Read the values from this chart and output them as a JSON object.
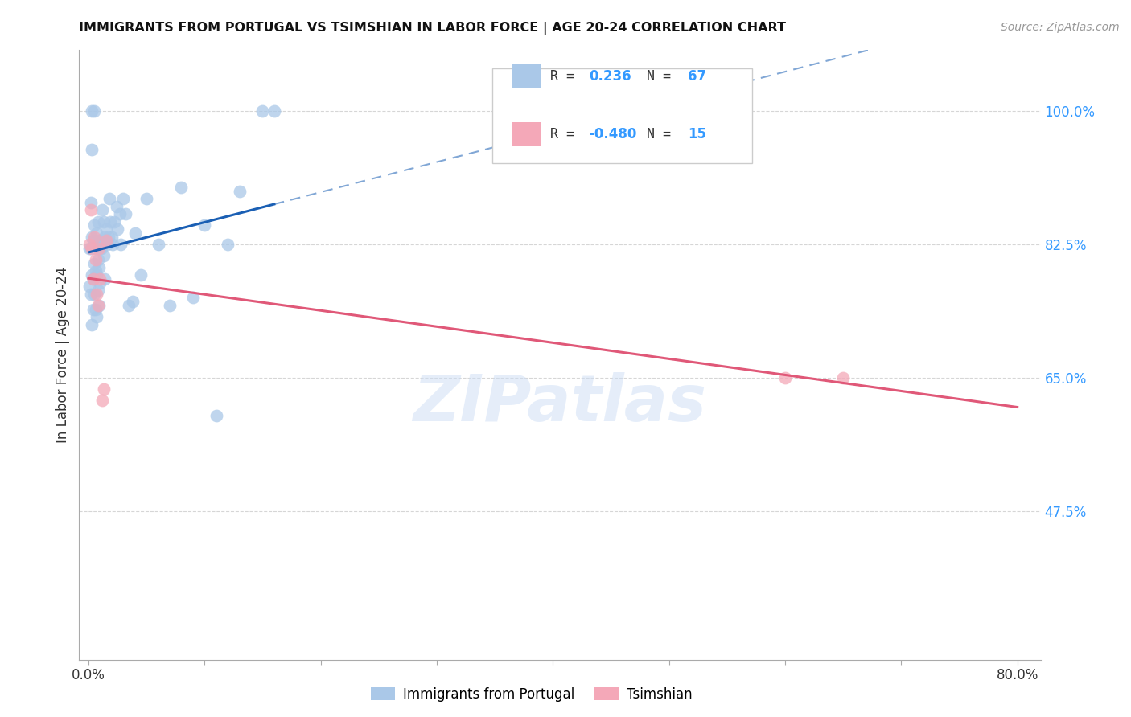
{
  "title": "IMMIGRANTS FROM PORTUGAL VS TSIMSHIAN IN LABOR FORCE | AGE 20-24 CORRELATION CHART",
  "source": "Source: ZipAtlas.com",
  "ylabel": "In Labor Force | Age 20-24",
  "yticks": [
    0.475,
    0.65,
    0.825,
    1.0
  ],
  "ytick_labels": [
    "47.5%",
    "65.0%",
    "82.5%",
    "100.0%"
  ],
  "xlim": [
    -0.008,
    0.82
  ],
  "ylim": [
    0.28,
    1.08
  ],
  "blue_color": "#aac8e8",
  "pink_color": "#f4a8b8",
  "blue_line_color": "#1a5fb4",
  "pink_line_color": "#e05878",
  "watermark": "ZIPatlas",
  "portugal_x": [
    0.001,
    0.001,
    0.002,
    0.002,
    0.002,
    0.003,
    0.003,
    0.003,
    0.003,
    0.003,
    0.004,
    0.004,
    0.004,
    0.005,
    0.005,
    0.005,
    0.005,
    0.006,
    0.006,
    0.006,
    0.007,
    0.007,
    0.007,
    0.008,
    0.008,
    0.008,
    0.009,
    0.009,
    0.01,
    0.01,
    0.01,
    0.011,
    0.012,
    0.012,
    0.013,
    0.013,
    0.014,
    0.014,
    0.015,
    0.016,
    0.017,
    0.018,
    0.019,
    0.02,
    0.021,
    0.022,
    0.024,
    0.025,
    0.027,
    0.028,
    0.03,
    0.032,
    0.035,
    0.038,
    0.04,
    0.045,
    0.05,
    0.06,
    0.07,
    0.08,
    0.09,
    0.1,
    0.11,
    0.12,
    0.13,
    0.15,
    0.16
  ],
  "portugal_y": [
    0.77,
    0.82,
    0.88,
    0.76,
    0.82,
    0.785,
    0.835,
    0.95,
    1.0,
    0.72,
    0.74,
    0.78,
    0.83,
    0.76,
    0.8,
    0.85,
    1.0,
    0.74,
    0.79,
    0.82,
    0.73,
    0.785,
    0.84,
    0.765,
    0.805,
    0.855,
    0.745,
    0.795,
    0.775,
    0.82,
    0.83,
    0.82,
    0.825,
    0.87,
    0.81,
    0.855,
    0.835,
    0.78,
    0.845,
    0.825,
    0.835,
    0.885,
    0.855,
    0.835,
    0.825,
    0.855,
    0.875,
    0.845,
    0.865,
    0.825,
    0.885,
    0.865,
    0.745,
    0.75,
    0.84,
    0.785,
    0.885,
    0.825,
    0.745,
    0.9,
    0.755,
    0.85,
    0.6,
    0.825,
    0.895,
    1.0,
    1.0
  ],
  "tsimshian_x": [
    0.001,
    0.002,
    0.003,
    0.004,
    0.005,
    0.006,
    0.007,
    0.008,
    0.009,
    0.01,
    0.012,
    0.013,
    0.015,
    0.6,
    0.65
  ],
  "tsimshian_y": [
    0.825,
    0.87,
    0.82,
    0.78,
    0.835,
    0.805,
    0.76,
    0.745,
    0.82,
    0.78,
    0.62,
    0.635,
    0.83,
    0.65,
    0.65
  ]
}
